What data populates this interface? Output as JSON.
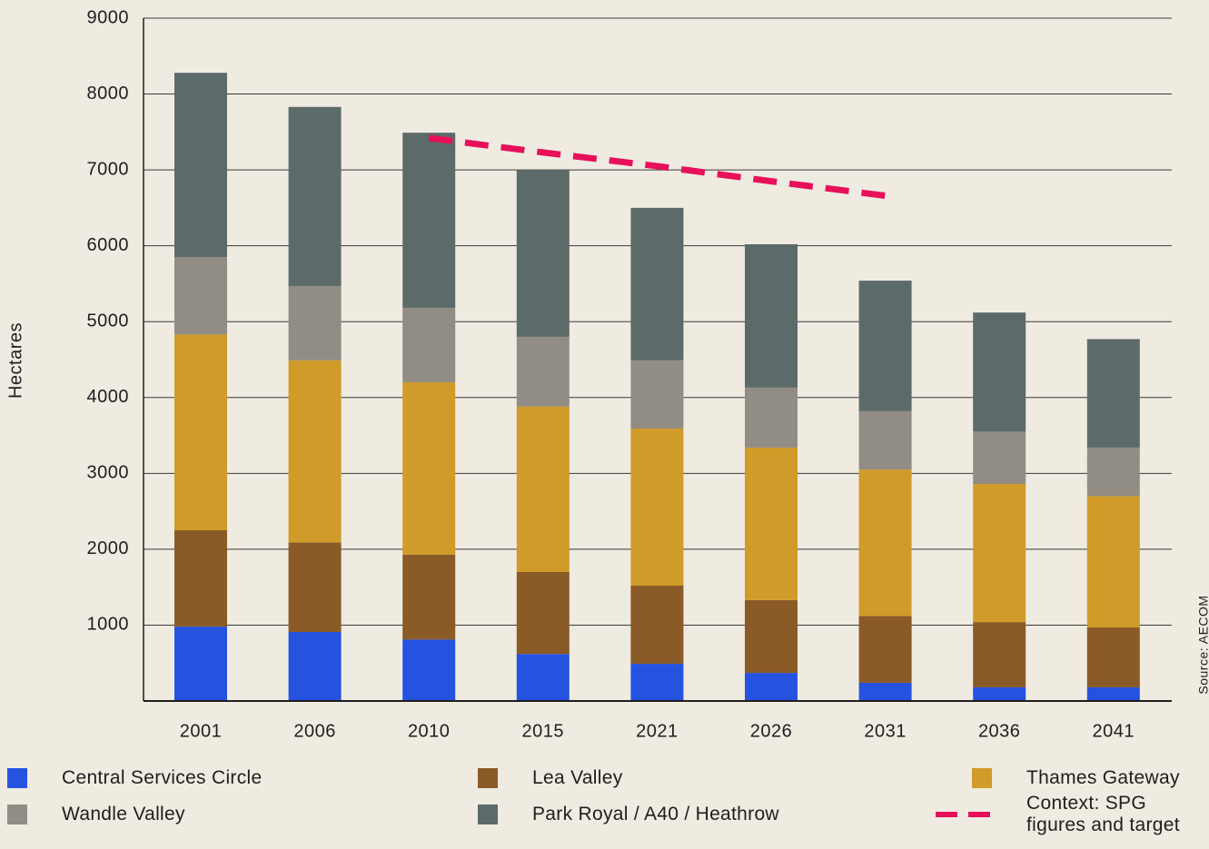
{
  "chart_data": {
    "type": "bar",
    "stacked": true,
    "y_label": "Hectares",
    "source": "Source: AECOM",
    "categories": [
      "2001",
      "2006",
      "2010",
      "2015",
      "2021",
      "2026",
      "2031",
      "2036",
      "2041"
    ],
    "series": [
      {
        "name": "Central Services Circle",
        "color": "#2553e0",
        "values": [
          980,
          910,
          810,
          620,
          490,
          370,
          240,
          180,
          180
        ]
      },
      {
        "name": "Lea Valley",
        "color": "#8a5a27",
        "values": [
          1270,
          1180,
          1120,
          1080,
          1030,
          960,
          880,
          860,
          790
        ]
      },
      {
        "name": "Thames Gateway",
        "color": "#d09b28",
        "values": [
          2580,
          2400,
          2270,
          2180,
          2070,
          2010,
          1930,
          1820,
          1730
        ]
      },
      {
        "name": "Wandle Valley",
        "color": "#928d84",
        "values": [
          1020,
          980,
          980,
          920,
          900,
          790,
          770,
          690,
          640
        ]
      },
      {
        "name": "Park Royal / A40 / Heathrow",
        "color": "#5d6a6a",
        "values": [
          2430,
          2360,
          2310,
          2200,
          2010,
          1890,
          1720,
          1570,
          1430
        ]
      },
      {
        "name": "Context: SPG figures and target",
        "color": "#e8105a",
        "type": "line",
        "dashed": true,
        "values": [
          null,
          null,
          7420,
          7230,
          7050,
          6850,
          6660,
          null,
          null
        ]
      }
    ],
    "ylim": [
      0,
      9000
    ],
    "yticks": [
      1000,
      2000,
      3000,
      4000,
      5000,
      6000,
      7000,
      8000,
      9000
    ],
    "grid": true
  }
}
